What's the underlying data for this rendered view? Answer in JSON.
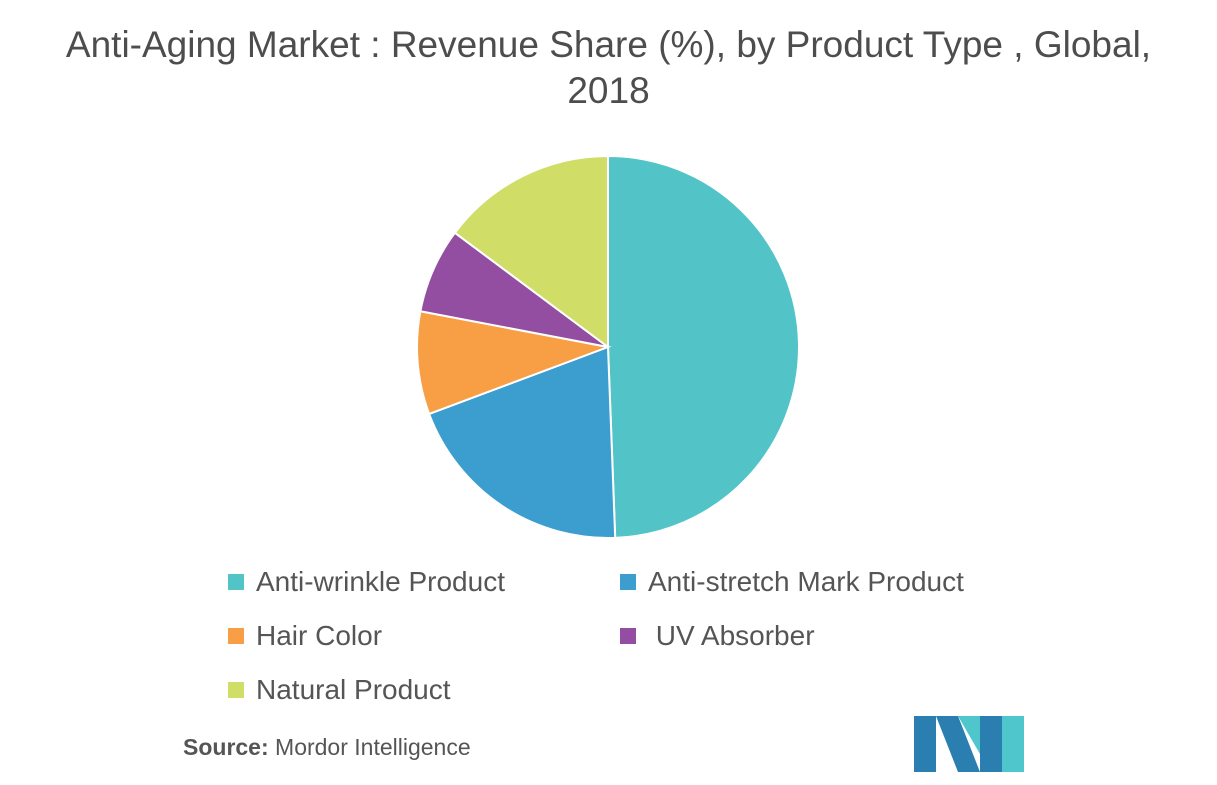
{
  "title": "Anti-Aging Market : Revenue Share (%), by Product Type , Global, 2018",
  "chart_data": {
    "type": "pie",
    "title": "Anti-Aging Market : Revenue Share (%), by Product Type , Global, 2018",
    "slices": [
      {
        "label": "Anti-wrinkle Product",
        "value": 49.4,
        "color": "#52c4c8"
      },
      {
        "label": "Anti-stretch Mark Product",
        "value": 19.9,
        "color": "#3c9ecf"
      },
      {
        "label": "Hair Color",
        "value": 8.7,
        "color": "#f89f45"
      },
      {
        "label": " UV Absorber",
        "value": 7.2,
        "color": "#944ea1"
      },
      {
        "label": "Natural Product",
        "value": 14.8,
        "color": "#d0de68"
      }
    ],
    "legend_position": "bottom"
  },
  "source": {
    "label": "Source:",
    "text": " Mordor Intelligence"
  },
  "logo": {
    "colors": [
      "#2a7fb0",
      "#4ec6cc"
    ]
  }
}
